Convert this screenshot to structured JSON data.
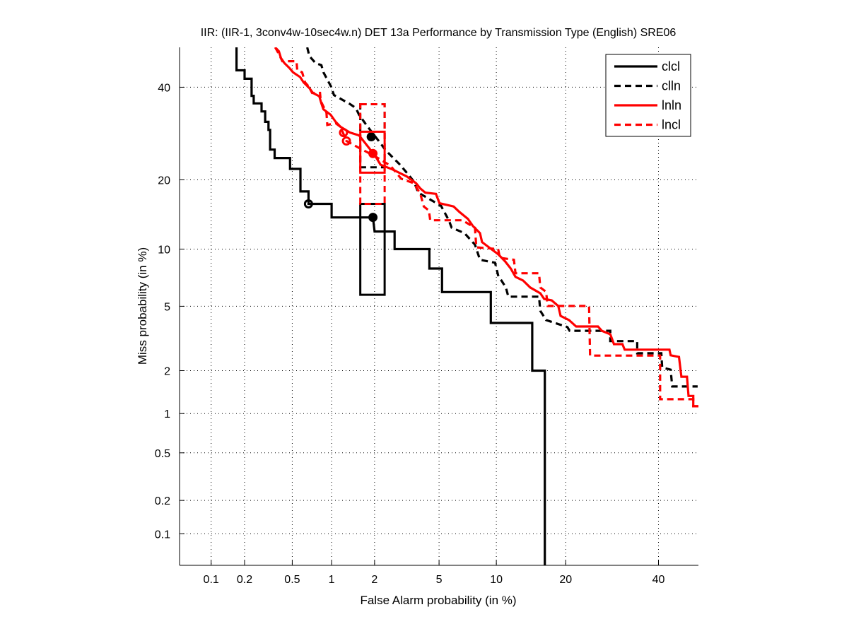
{
  "chart_data": {
    "type": "line",
    "title": "IIR: (IIR-1, 3conv4w-10sec4w.n) DET 13a Performance by Transmission Type (English) SRE06",
    "xlabel": "False Alarm probability (in %)",
    "ylabel": "Miss probability (in %)",
    "xscale": "normal-deviate",
    "yscale": "normal-deviate",
    "xlim": [
      0.05,
      50
    ],
    "ylim": [
      0.05,
      50
    ],
    "grid": true,
    "legend_position": "top-right",
    "xticks": [
      0.1,
      0.2,
      0.5,
      1,
      2,
      5,
      10,
      20,
      40
    ],
    "xtick_labels": [
      "0.1",
      "0.2",
      "0.5",
      "1",
      "2",
      "5",
      "10",
      "20",
      "40"
    ],
    "yticks": [
      0.1,
      0.2,
      0.5,
      1,
      2,
      5,
      10,
      20,
      40
    ],
    "ytick_labels": [
      "0.1",
      "0.2",
      "0.5",
      "1",
      "2",
      "5",
      "10",
      "20",
      "40"
    ],
    "series": [
      {
        "name": "clcl",
        "color": "#000000",
        "dashed": false,
        "points": [
          [
            0.17,
            50
          ],
          [
            0.17,
            44.2
          ],
          [
            0.2,
            44.2
          ],
          [
            0.2,
            42.1
          ],
          [
            0.23,
            42.1
          ],
          [
            0.23,
            37.9
          ],
          [
            0.24,
            37.9
          ],
          [
            0.24,
            36.1
          ],
          [
            0.28,
            36.1
          ],
          [
            0.28,
            34.2
          ],
          [
            0.3,
            34.2
          ],
          [
            0.3,
            31.8
          ],
          [
            0.32,
            31.8
          ],
          [
            0.32,
            30
          ],
          [
            0.33,
            30
          ],
          [
            0.33,
            25.8
          ],
          [
            0.36,
            25.8
          ],
          [
            0.36,
            24.1
          ],
          [
            0.48,
            24.1
          ],
          [
            0.48,
            22
          ],
          [
            0.58,
            22
          ],
          [
            0.58,
            18
          ],
          [
            0.67,
            18
          ],
          [
            0.67,
            16
          ],
          [
            1.0,
            16
          ],
          [
            1.0,
            14
          ],
          [
            1.95,
            14
          ],
          [
            2.0,
            12.1
          ],
          [
            2.7,
            12.1
          ],
          [
            2.7,
            10
          ],
          [
            4.4,
            10
          ],
          [
            4.4,
            8
          ],
          [
            5.2,
            8
          ],
          [
            5.2,
            6
          ],
          [
            9.4,
            6
          ],
          [
            9.4,
            4
          ],
          [
            14.6,
            4
          ],
          [
            14.6,
            2
          ],
          [
            16.5,
            2
          ],
          [
            16.5,
            0.05
          ]
        ],
        "markers": [
          {
            "x": 0.67,
            "y": 16,
            "filled": false
          },
          {
            "x": 1.95,
            "y": 14,
            "filled": true
          }
        ],
        "confidence_box": {
          "x": [
            1.6,
            2.33
          ],
          "y": [
            5.8,
            16
          ]
        }
      },
      {
        "name": "clln",
        "color": "#000000",
        "dashed": true,
        "points": [
          [
            0.655,
            50
          ],
          [
            0.68,
            47.8
          ],
          [
            0.76,
            46
          ],
          [
            0.84,
            45.5
          ],
          [
            0.87,
            43.7
          ],
          [
            0.99,
            40.2
          ],
          [
            1.04,
            38.1
          ],
          [
            1.36,
            35.9
          ],
          [
            1.49,
            35
          ],
          [
            1.57,
            33.4
          ],
          [
            1.76,
            31.1
          ],
          [
            2.19,
            27.1
          ],
          [
            2.36,
            25.7
          ],
          [
            2.9,
            22.9
          ],
          [
            3.28,
            21
          ],
          [
            3.56,
            19.7
          ],
          [
            3.78,
            17.8
          ],
          [
            5.13,
            15.7
          ],
          [
            5.67,
            13.6
          ],
          [
            5.88,
            12.6
          ],
          [
            6.89,
            11.9
          ],
          [
            7.82,
            10.5
          ],
          [
            8.3,
            8.86
          ],
          [
            9.86,
            8.56
          ],
          [
            10.2,
            7.37
          ],
          [
            11.1,
            6.36
          ],
          [
            11.4,
            5.66
          ],
          [
            15.6,
            5.66
          ],
          [
            15.8,
            4.71
          ],
          [
            16.7,
            4.16
          ],
          [
            20.3,
            3.78
          ],
          [
            20.7,
            3.59
          ],
          [
            28.8,
            3.59
          ],
          [
            28.8,
            3.1
          ],
          [
            34.9,
            3.1
          ],
          [
            34.9,
            2.6
          ],
          [
            40.7,
            2.6
          ],
          [
            40.9,
            2.1
          ],
          [
            43,
            2.03
          ],
          [
            43.4,
            1.56
          ],
          [
            49.8,
            1.56
          ]
        ],
        "markers": [
          {
            "x": 1.9,
            "y": 28.5,
            "filled": true
          }
        ],
        "confidence_box": {
          "x": [
            1.6,
            2.33
          ],
          "y": [
            22.3,
            35.9
          ]
        }
      },
      {
        "name": "lnln",
        "color": "#ff0000",
        "dashed": false,
        "points": [
          [
            0.364,
            50
          ],
          [
            0.39,
            49
          ],
          [
            0.405,
            47.3
          ],
          [
            0.433,
            46
          ],
          [
            0.474,
            44.8
          ],
          [
            0.507,
            43.7
          ],
          [
            0.577,
            42.5
          ],
          [
            0.614,
            41.2
          ],
          [
            0.68,
            39.8
          ],
          [
            0.724,
            38.6
          ],
          [
            0.81,
            37.8
          ],
          [
            0.84,
            36.1
          ],
          [
            0.87,
            34.7
          ],
          [
            0.985,
            33.4
          ],
          [
            1.07,
            31.8
          ],
          [
            1.16,
            30.7
          ],
          [
            1.36,
            29.4
          ],
          [
            1.57,
            28.8
          ],
          [
            1.84,
            26.1
          ],
          [
            2.05,
            24.2
          ],
          [
            2.19,
            22.8
          ],
          [
            2.62,
            21.9
          ],
          [
            3.22,
            20.6
          ],
          [
            3.67,
            19.4
          ],
          [
            3.89,
            18.5
          ],
          [
            4.16,
            17.8
          ],
          [
            4.8,
            17.6
          ],
          [
            5.03,
            16.1
          ],
          [
            6.03,
            15.6
          ],
          [
            6.47,
            14.8
          ],
          [
            7.19,
            13.8
          ],
          [
            7.64,
            12.8
          ],
          [
            8.3,
            11.9
          ],
          [
            8.5,
            10.8
          ],
          [
            9.45,
            10
          ],
          [
            10.2,
            9.44
          ],
          [
            11,
            8.71
          ],
          [
            11.7,
            8
          ],
          [
            12.3,
            7.24
          ],
          [
            13.3,
            6.93
          ],
          [
            14.3,
            6.36
          ],
          [
            15.8,
            5.91
          ],
          [
            16.4,
            5.5
          ],
          [
            17.6,
            5.4
          ],
          [
            18.7,
            5.02
          ],
          [
            19.1,
            4.4
          ],
          [
            20.6,
            4.16
          ],
          [
            21.9,
            3.81
          ],
          [
            26.2,
            3.81
          ],
          [
            27,
            3.59
          ],
          [
            28.8,
            3.42
          ],
          [
            29.6,
            2.97
          ],
          [
            31.5,
            2.97
          ],
          [
            32,
            2.74
          ],
          [
            42.7,
            2.74
          ],
          [
            43,
            2.52
          ],
          [
            45.1,
            2.46
          ],
          [
            45.7,
            1.82
          ],
          [
            47.1,
            1.82
          ],
          [
            47.5,
            1.34
          ],
          [
            48.7,
            1.34
          ],
          [
            48.7,
            1.13
          ],
          [
            50,
            1.13
          ]
        ],
        "markers": [
          {
            "x": 1.22,
            "y": 29.4,
            "filled": false
          },
          {
            "x": 1.95,
            "y": 25,
            "filled": true
          }
        ],
        "confidence_box": {
          "x": [
            1.6,
            2.33
          ],
          "y": [
            21.3,
            29.6
          ]
        }
      },
      {
        "name": "lncl",
        "color": "#ff0000",
        "dashed": true,
        "points": [
          [
            0.364,
            50
          ],
          [
            0.39,
            48.3
          ],
          [
            0.416,
            46.5
          ],
          [
            0.54,
            46.5
          ],
          [
            0.548,
            44.2
          ],
          [
            0.598,
            43.7
          ],
          [
            0.63,
            41.2
          ],
          [
            0.672,
            40.2
          ],
          [
            0.714,
            38.6
          ],
          [
            0.82,
            38.6
          ],
          [
            0.83,
            36.7
          ],
          [
            0.916,
            33.9
          ],
          [
            0.93,
            31.1
          ],
          [
            1.07,
            31.5
          ],
          [
            1.16,
            30.7
          ],
          [
            1.28,
            27.6
          ],
          [
            1.6,
            26
          ],
          [
            2.0,
            24.5
          ],
          [
            2.54,
            22.6
          ],
          [
            2.97,
            20.2
          ],
          [
            3.56,
            19.4
          ],
          [
            3.89,
            17.6
          ],
          [
            4.08,
            15.6
          ],
          [
            4.37,
            15.0
          ],
          [
            4.45,
            13.6
          ],
          [
            6.71,
            13.6
          ],
          [
            7.82,
            12.6
          ],
          [
            7.95,
            10.2
          ],
          [
            10.2,
            10
          ],
          [
            10.4,
            9.06
          ],
          [
            12.1,
            8.86
          ],
          [
            12.3,
            7.56
          ],
          [
            15.6,
            7.56
          ],
          [
            15.8,
            6.36
          ],
          [
            16.7,
            6.02
          ],
          [
            16.96,
            5.02
          ],
          [
            24.4,
            5.02
          ],
          [
            24.6,
            2.51
          ],
          [
            40.4,
            2.51
          ],
          [
            40.4,
            1.27
          ],
          [
            48.7,
            1.27
          ],
          [
            48.7,
            1.13
          ],
          [
            50,
            1.13
          ]
        ],
        "markers": [
          {
            "x": 1.28,
            "y": 27.6,
            "filled": false
          }
        ],
        "confidence_box": {
          "x": [
            1.6,
            2.33
          ],
          "y": [
            16,
            35.9
          ]
        }
      }
    ]
  }
}
